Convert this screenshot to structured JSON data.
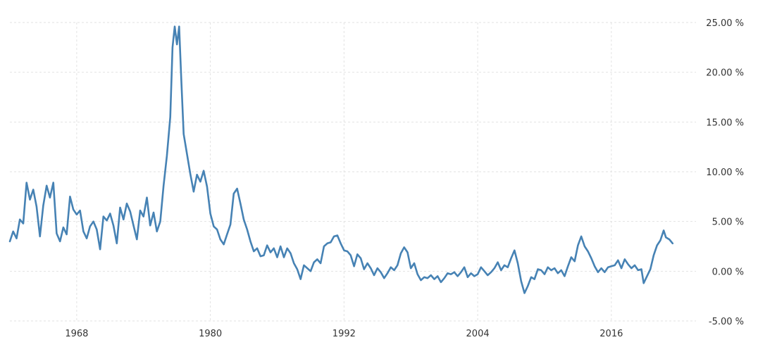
{
  "chart_data": {
    "type": "line",
    "title": "",
    "xlabel": "",
    "ylabel": "",
    "xlim": [
      1962.0,
      2023.6
    ],
    "ylim": [
      -5,
      25
    ],
    "grid": true,
    "y_axis_position": "right",
    "y_ticks": [
      {
        "value": 25,
        "label": "25.00 %"
      },
      {
        "value": 20,
        "label": "20.00 %"
      },
      {
        "value": 15,
        "label": "15.00 %"
      },
      {
        "value": 10,
        "label": "10.00 %"
      },
      {
        "value": 5,
        "label": "5.00 %"
      },
      {
        "value": 0,
        "label": "0.00 %"
      },
      {
        "value": -5,
        "label": "-5.00 %"
      }
    ],
    "x_ticks": [
      {
        "value": 1968,
        "label": "1968"
      },
      {
        "value": 1980,
        "label": "1980"
      },
      {
        "value": 1992,
        "label": "1992"
      },
      {
        "value": 2004,
        "label": "2004"
      },
      {
        "value": 2016,
        "label": "2016"
      }
    ],
    "series": [
      {
        "color": "#4682b4",
        "points": [
          [
            1962.0,
            3.0
          ],
          [
            1962.3,
            4.0
          ],
          [
            1962.6,
            3.3
          ],
          [
            1962.9,
            5.2
          ],
          [
            1963.2,
            4.8
          ],
          [
            1963.5,
            8.9
          ],
          [
            1963.8,
            7.2
          ],
          [
            1964.1,
            8.2
          ],
          [
            1964.4,
            6.5
          ],
          [
            1964.7,
            3.5
          ],
          [
            1965.0,
            6.6
          ],
          [
            1965.3,
            8.6
          ],
          [
            1965.6,
            7.4
          ],
          [
            1965.9,
            8.9
          ],
          [
            1966.2,
            3.8
          ],
          [
            1966.5,
            3.0
          ],
          [
            1966.8,
            4.4
          ],
          [
            1967.1,
            3.7
          ],
          [
            1967.4,
            7.5
          ],
          [
            1967.7,
            6.2
          ],
          [
            1968.0,
            5.7
          ],
          [
            1968.3,
            6.1
          ],
          [
            1968.6,
            4.0
          ],
          [
            1968.9,
            3.3
          ],
          [
            1969.2,
            4.5
          ],
          [
            1969.5,
            5.0
          ],
          [
            1969.8,
            4.2
          ],
          [
            1970.1,
            2.2
          ],
          [
            1970.4,
            5.5
          ],
          [
            1970.7,
            5.1
          ],
          [
            1971.0,
            5.8
          ],
          [
            1971.3,
            4.6
          ],
          [
            1971.6,
            2.8
          ],
          [
            1971.9,
            6.4
          ],
          [
            1972.2,
            5.2
          ],
          [
            1972.5,
            6.8
          ],
          [
            1972.8,
            6.0
          ],
          [
            1973.1,
            4.6
          ],
          [
            1973.4,
            3.2
          ],
          [
            1973.7,
            6.1
          ],
          [
            1974.0,
            5.5
          ],
          [
            1974.3,
            7.4
          ],
          [
            1974.6,
            4.6
          ],
          [
            1974.9,
            5.9
          ],
          [
            1975.2,
            4.0
          ],
          [
            1975.5,
            5.0
          ],
          [
            1975.8,
            8.6
          ],
          [
            1976.1,
            11.6
          ],
          [
            1976.4,
            15.5
          ],
          [
            1976.6,
            22.5
          ],
          [
            1976.8,
            24.6
          ],
          [
            1977.0,
            22.8
          ],
          [
            1977.2,
            24.6
          ],
          [
            1977.4,
            19.0
          ],
          [
            1977.6,
            13.8
          ],
          [
            1977.9,
            11.8
          ],
          [
            1978.2,
            9.8
          ],
          [
            1978.5,
            8.0
          ],
          [
            1978.8,
            9.7
          ],
          [
            1979.1,
            9.0
          ],
          [
            1979.4,
            10.1
          ],
          [
            1979.7,
            8.5
          ],
          [
            1980.0,
            5.8
          ],
          [
            1980.3,
            4.5
          ],
          [
            1980.6,
            4.2
          ],
          [
            1980.9,
            3.2
          ],
          [
            1981.2,
            2.7
          ],
          [
            1981.5,
            3.7
          ],
          [
            1981.8,
            4.7
          ],
          [
            1982.1,
            7.8
          ],
          [
            1982.4,
            8.3
          ],
          [
            1982.7,
            6.8
          ],
          [
            1983.0,
            5.2
          ],
          [
            1983.3,
            4.2
          ],
          [
            1983.6,
            3.0
          ],
          [
            1983.9,
            2.0
          ],
          [
            1984.2,
            2.3
          ],
          [
            1984.5,
            1.5
          ],
          [
            1984.8,
            1.6
          ],
          [
            1985.1,
            2.6
          ],
          [
            1985.4,
            1.9
          ],
          [
            1985.7,
            2.3
          ],
          [
            1986.0,
            1.4
          ],
          [
            1986.3,
            2.5
          ],
          [
            1986.6,
            1.4
          ],
          [
            1986.9,
            2.3
          ],
          [
            1987.2,
            1.8
          ],
          [
            1987.5,
            0.8
          ],
          [
            1987.8,
            0.2
          ],
          [
            1988.1,
            -0.8
          ],
          [
            1988.4,
            0.6
          ],
          [
            1988.7,
            0.3
          ],
          [
            1989.0,
            0.0
          ],
          [
            1989.3,
            0.9
          ],
          [
            1989.6,
            1.2
          ],
          [
            1989.9,
            0.8
          ],
          [
            1990.2,
            2.5
          ],
          [
            1990.5,
            2.8
          ],
          [
            1990.8,
            2.9
          ],
          [
            1991.1,
            3.5
          ],
          [
            1991.4,
            3.6
          ],
          [
            1991.7,
            2.8
          ],
          [
            1992.0,
            2.1
          ],
          [
            1992.3,
            2.0
          ],
          [
            1992.6,
            1.6
          ],
          [
            1992.9,
            0.5
          ],
          [
            1993.2,
            1.7
          ],
          [
            1993.5,
            1.3
          ],
          [
            1993.8,
            0.2
          ],
          [
            1994.1,
            0.8
          ],
          [
            1994.4,
            0.3
          ],
          [
            1994.7,
            -0.4
          ],
          [
            1995.0,
            0.3
          ],
          [
            1995.3,
            -0.1
          ],
          [
            1995.6,
            -0.7
          ],
          [
            1995.9,
            -0.2
          ],
          [
            1996.2,
            0.4
          ],
          [
            1996.5,
            0.1
          ],
          [
            1996.8,
            0.6
          ],
          [
            1997.1,
            1.8
          ],
          [
            1997.4,
            2.4
          ],
          [
            1997.7,
            1.9
          ],
          [
            1998.0,
            0.3
          ],
          [
            1998.3,
            0.8
          ],
          [
            1998.6,
            -0.3
          ],
          [
            1998.9,
            -0.9
          ],
          [
            1999.2,
            -0.6
          ],
          [
            1999.5,
            -0.7
          ],
          [
            1999.8,
            -0.4
          ],
          [
            2000.1,
            -0.8
          ],
          [
            2000.4,
            -0.5
          ],
          [
            2000.7,
            -1.1
          ],
          [
            2001.0,
            -0.7
          ],
          [
            2001.3,
            -0.2
          ],
          [
            2001.6,
            -0.3
          ],
          [
            2001.9,
            -0.1
          ],
          [
            2002.2,
            -0.5
          ],
          [
            2002.5,
            -0.1
          ],
          [
            2002.8,
            0.4
          ],
          [
            2003.1,
            -0.6
          ],
          [
            2003.4,
            -0.2
          ],
          [
            2003.7,
            -0.5
          ],
          [
            2004.0,
            -0.3
          ],
          [
            2004.3,
            0.4
          ],
          [
            2004.6,
            0.0
          ],
          [
            2004.9,
            -0.4
          ],
          [
            2005.2,
            -0.1
          ],
          [
            2005.5,
            0.3
          ],
          [
            2005.8,
            0.9
          ],
          [
            2006.1,
            0.1
          ],
          [
            2006.4,
            0.6
          ],
          [
            2006.7,
            0.4
          ],
          [
            2007.0,
            1.3
          ],
          [
            2007.3,
            2.1
          ],
          [
            2007.6,
            0.8
          ],
          [
            2007.9,
            -1.0
          ],
          [
            2008.2,
            -2.2
          ],
          [
            2008.5,
            -1.5
          ],
          [
            2008.8,
            -0.6
          ],
          [
            2009.1,
            -0.8
          ],
          [
            2009.4,
            0.2
          ],
          [
            2009.7,
            0.1
          ],
          [
            2010.0,
            -0.3
          ],
          [
            2010.3,
            0.4
          ],
          [
            2010.6,
            0.1
          ],
          [
            2010.9,
            0.3
          ],
          [
            2011.2,
            -0.2
          ],
          [
            2011.5,
            0.1
          ],
          [
            2011.8,
            -0.5
          ],
          [
            2012.1,
            0.5
          ],
          [
            2012.4,
            1.4
          ],
          [
            2012.7,
            1.0
          ],
          [
            2013.0,
            2.6
          ],
          [
            2013.3,
            3.5
          ],
          [
            2013.6,
            2.5
          ],
          [
            2013.9,
            2.0
          ],
          [
            2014.2,
            1.3
          ],
          [
            2014.5,
            0.5
          ],
          [
            2014.8,
            -0.1
          ],
          [
            2015.1,
            0.3
          ],
          [
            2015.4,
            -0.1
          ],
          [
            2015.7,
            0.4
          ],
          [
            2016.0,
            0.5
          ],
          [
            2016.3,
            0.6
          ],
          [
            2016.6,
            1.1
          ],
          [
            2016.9,
            0.3
          ],
          [
            2017.2,
            1.2
          ],
          [
            2017.5,
            0.7
          ],
          [
            2017.8,
            0.3
          ],
          [
            2018.1,
            0.6
          ],
          [
            2018.4,
            0.1
          ],
          [
            2018.7,
            0.2
          ],
          [
            2018.9,
            -1.2
          ],
          [
            2019.2,
            -0.5
          ],
          [
            2019.5,
            0.2
          ],
          [
            2019.8,
            1.6
          ],
          [
            2020.1,
            2.6
          ],
          [
            2020.4,
            3.1
          ],
          [
            2020.7,
            4.1
          ],
          [
            2020.9,
            3.4
          ],
          [
            2021.2,
            3.2
          ],
          [
            2021.5,
            2.8
          ]
        ]
      }
    ]
  }
}
